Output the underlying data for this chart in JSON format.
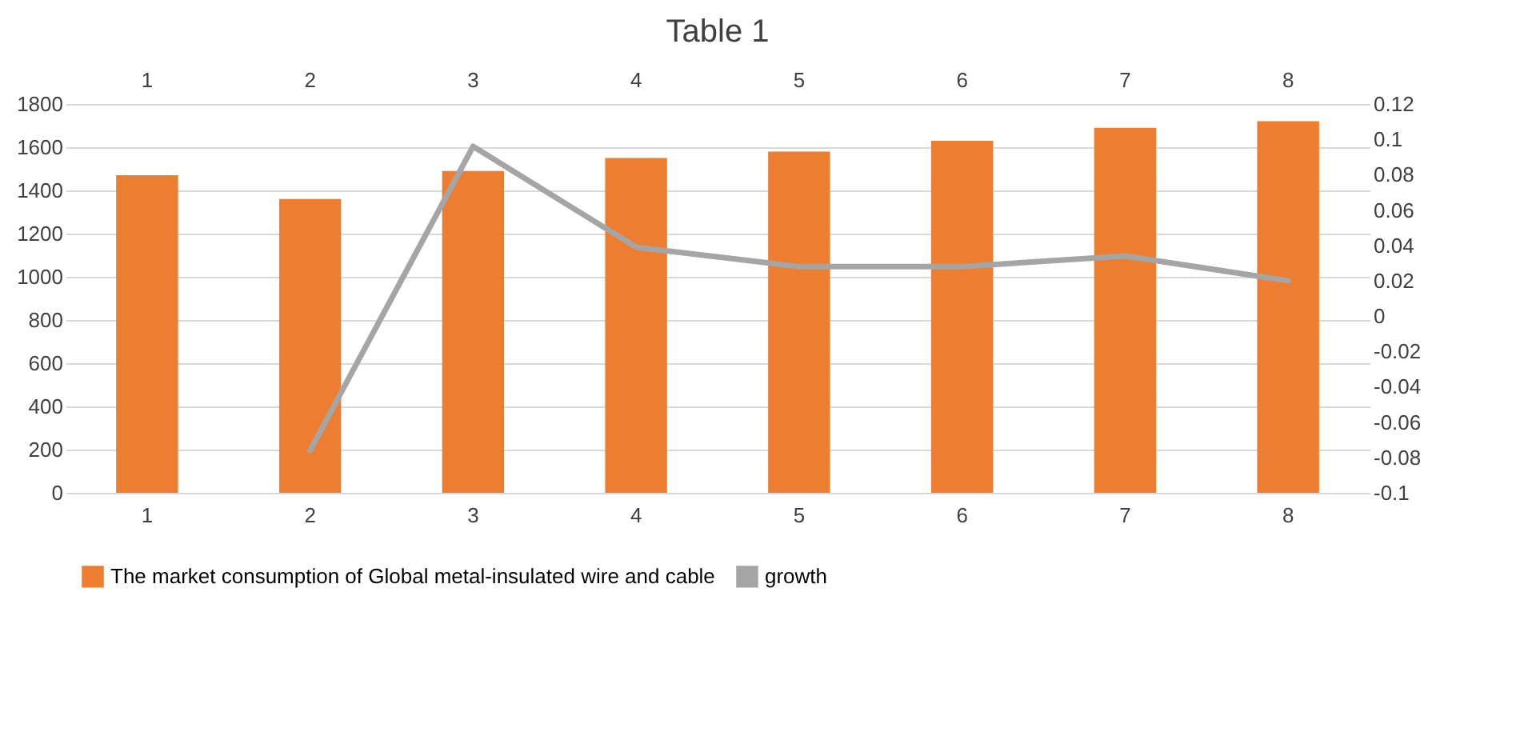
{
  "chart_data": {
    "type": "bar",
    "title": "Table 1",
    "categories": [
      "1",
      "2",
      "3",
      "4",
      "5",
      "6",
      "7",
      "8"
    ],
    "series": [
      {
        "name": "The market consumption of Global metal-insulated wire and cable",
        "color": "#ed7d31",
        "values": [
          1470,
          1360,
          1490,
          1550,
          1580,
          1630,
          1690,
          1720
        ]
      },
      {
        "name": "growth",
        "type": "line",
        "axis": "y2",
        "color": "#a5a5a5",
        "values": [
          null,
          -0.076,
          0.096,
          0.039,
          0.028,
          0.028,
          0.034,
          0.02
        ]
      }
    ],
    "ylim": [
      0,
      1800
    ],
    "yticks": [
      0,
      200,
      400,
      600,
      800,
      1000,
      1200,
      1400,
      1600,
      1800
    ],
    "y2lim": [
      -0.1,
      0.12
    ],
    "y2ticks": [
      -0.1,
      -0.08,
      -0.06,
      -0.04,
      -0.02,
      0,
      0.02,
      0.04,
      0.06,
      0.08,
      0.1,
      0.12
    ],
    "grid": "y",
    "legend": "bottom"
  }
}
